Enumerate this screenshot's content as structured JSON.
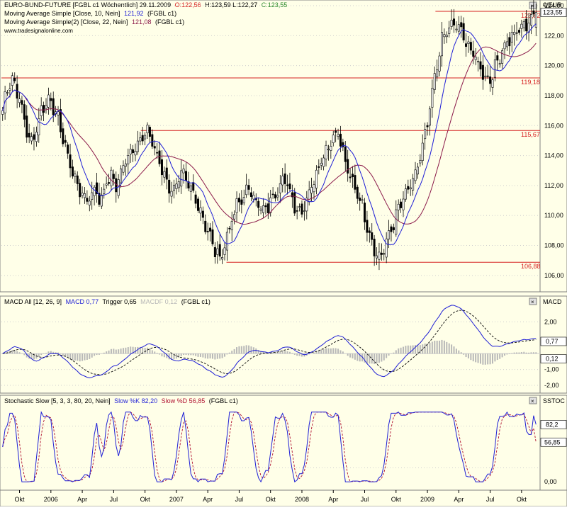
{
  "colors": {
    "background": "#ffffe8",
    "price": "#000000",
    "ma10": "#1f1fd6",
    "ma22": "#8b1a4a",
    "support_line": "#d62020",
    "macd": "#1f1fd6",
    "trigger": "#000000",
    "macdf": "#b8b8b8",
    "stoch_k": "#1f1fd6",
    "stoch_d": "#b01030",
    "grid": "#cfcfcf"
  },
  "header": {
    "line1": {
      "title": "EURO-BUND-FUTURE [FGBL c1 Wöchentlich] 29.11.2009",
      "open": "O:122,56",
      "hlc": "H:123,59 L:122,27",
      "close": "C:123,55"
    },
    "line2": {
      "label": "Moving Average Simple [Close, 10, Nein]",
      "value": "121,92",
      "suffix": "(FGBL c1)"
    },
    "line3": {
      "label": "Moving Average Simple(2) [Close, 22, Nein]",
      "value": "121,08",
      "suffix": "(FGBL c1)"
    },
    "line4": {
      "label": "www.tradesignalonline.com"
    }
  },
  "macd_header": {
    "label": "MACD All [12, 26, 9]",
    "macd": "MACD 0,77",
    "trigger": "Trigger 0,65",
    "macdf": "MACDF 0,12",
    "suffix": "(FGBL c1)"
  },
  "stoch_header": {
    "label": "Stochastic Slow [5, 3, 3, 80, 20, Nein]",
    "k": "Slow %K 82,20",
    "d": "Slow %D 56,85",
    "suffix": "(FGBL c1)"
  },
  "axis_titles": {
    "price": "€/EUR",
    "macd": "MACD",
    "stoch": "SSTOC"
  },
  "chart_data": [
    {
      "type": "candlestick",
      "title": "EURO-BUND-FUTURE [FGBL c1 Wöchentlich]",
      "date": "29.11.2009",
      "last_bar": {
        "open": 122.56,
        "high": 123.59,
        "low": 122.27,
        "close": 123.55
      },
      "ylim": [
        105,
        124
      ],
      "y_ticks": [
        "106,00",
        "108,00",
        "110,00",
        "112,00",
        "114,00",
        "116,00",
        "118,00",
        "120,00",
        "122,00",
        "124,00"
      ],
      "y_tick_values": [
        106,
        108,
        110,
        112,
        114,
        116,
        118,
        120,
        122,
        124
      ],
      "current_value_label": "123,55",
      "x_ticks": [
        "Okt",
        "2006",
        "Apr",
        "Jul",
        "Okt",
        "2007",
        "Apr",
        "Jul",
        "Okt",
        "2008",
        "Apr",
        "Jul",
        "Okt",
        "2009",
        "Apr",
        "Jul",
        "Okt"
      ],
      "weeks_total": 222,
      "x_tick_weeks": [
        7,
        20,
        33,
        46,
        59,
        72,
        85,
        98,
        111,
        124,
        137,
        150,
        163,
        176,
        189,
        202,
        215
      ],
      "closes": [
        117,
        118.2,
        118.8,
        119.2,
        118.5,
        118,
        117,
        116,
        115.2,
        114.8,
        115.6,
        116.4,
        117,
        117.4,
        117.8,
        117.6,
        117,
        116.4,
        115.6,
        114.8,
        114,
        113.2,
        112.6,
        112,
        111.6,
        111.2,
        111,
        111.4,
        111.8,
        111.4,
        111,
        111.6,
        112.2,
        112.6,
        112.4,
        112,
        112.6,
        113.2,
        113.8,
        114.2,
        114.4,
        114.8,
        115,
        115.2,
        115.4,
        115.5,
        115,
        114.2,
        113.6,
        113,
        112.6,
        112,
        111.6,
        112,
        112.4,
        112.8,
        112.4,
        112,
        111.6,
        111.2,
        110.8,
        110.2,
        109.6,
        109,
        108.4,
        107.8,
        107.4,
        107.2,
        107.8,
        108.6,
        109.4,
        110,
        110.6,
        111,
        111.2,
        111.6,
        111.8,
        111.4,
        111,
        110.6,
        110.2,
        110.4,
        110.8,
        111.2,
        111.6,
        112,
        112.4,
        112.2,
        111.8,
        111.2,
        110.6,
        110.2,
        110.4,
        110.8,
        111.4,
        112,
        112.6,
        113.2,
        113.8,
        114.2,
        114.6,
        115,
        115.4,
        115.6,
        114.8,
        113.8,
        113,
        112.4,
        112,
        111.6,
        111,
        110.2,
        109.4,
        108.6,
        108,
        107.4,
        107.2,
        107.6,
        108.2,
        108.8,
        109.4,
        110,
        110.6,
        111,
        111.4,
        111.8,
        112.2,
        112.8,
        113.6,
        114.4,
        115.4,
        116.6,
        118,
        119.4,
        120.6,
        121.6,
        122.2,
        122.4,
        122.6,
        122.8,
        122.6,
        122.2,
        121.8,
        121.4,
        121,
        120.6,
        120.2,
        119.8,
        119.4,
        119,
        119.2,
        119.6,
        120.2,
        120.8,
        121.2,
        121.6,
        121.8,
        122,
        122.2,
        122.4,
        122.6,
        122.8,
        123,
        123.2,
        123.55
      ],
      "ma10_last": 121.92,
      "ma22_last": 121.08,
      "levels": [
        {
          "value": 123.62,
          "label": "123,62"
        },
        {
          "value": 119.18,
          "label": "119,18"
        },
        {
          "value": 115.67,
          "label": "115,67"
        },
        {
          "value": 106.88,
          "label": "106,88"
        }
      ]
    },
    {
      "type": "line",
      "title": "MACD All [12, 26, 9]",
      "ylim": [
        -2.4,
        3.0
      ],
      "y_ticks": [
        "-2,00",
        "-1,00",
        "2,00"
      ],
      "y_tick_values": [
        -2,
        -1,
        2
      ],
      "series": [
        {
          "name": "MACD",
          "last": 0.77,
          "last_label": "0,77"
        },
        {
          "name": "Trigger",
          "last": 0.65
        },
        {
          "name": "MACDF",
          "last": 0.12,
          "last_label": "0,12"
        }
      ]
    },
    {
      "type": "line",
      "title": "Stochastic Slow [5, 3, 3, 80, 20, Nein]",
      "ylim": [
        -10,
        110
      ],
      "y_ticks": [
        "0,00"
      ],
      "y_tick_values": [
        0
      ],
      "reference_levels": [
        80,
        20
      ],
      "series": [
        {
          "name": "Slow %K",
          "last": 82.2,
          "last_label": "82,2"
        },
        {
          "name": "Slow %D",
          "last": 56.85,
          "last_label": "56,85"
        }
      ]
    }
  ]
}
